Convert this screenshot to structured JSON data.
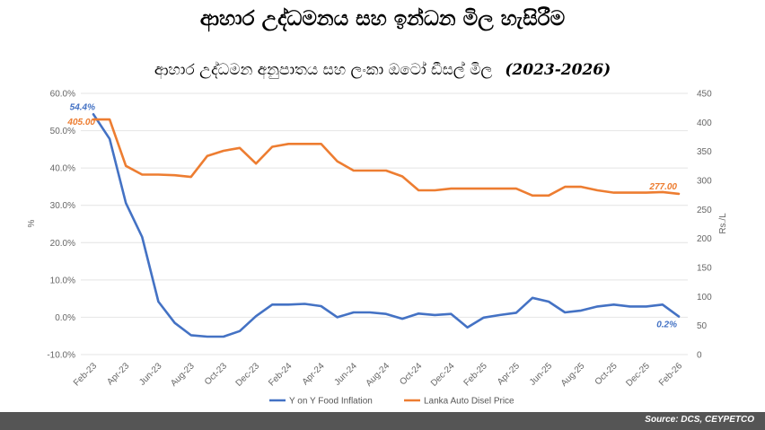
{
  "page": {
    "title": "ආහාර උද්ධමනය සහ ඉන්ධන මිල හැසිරීම",
    "footer_source": "Source: DCS, CEYPETCO"
  },
  "chart_data": {
    "type": "line",
    "title": "ආහාර උද්ධමන අනුපාතය සහ ලංකා ඔටෝ ඩීසල් මිල",
    "title_years": "(2023-2026)",
    "ylabel": "%",
    "y2label": "Rs./L",
    "ylim": [
      -0.1,
      0.6
    ],
    "y2lim": [
      0,
      450
    ],
    "yticks": [
      "60.0%",
      "50.0%",
      "40.0%",
      "30.0%",
      "20.0%",
      "10.0%",
      "0.0%",
      "-10.0%"
    ],
    "y2ticks": [
      "450",
      "400",
      "350",
      "300",
      "250",
      "200",
      "150",
      "100",
      "50",
      "0"
    ],
    "xtick_labels": [
      "Feb-23",
      "Apr-23",
      "Jun-23",
      "Aug-23",
      "Oct-23",
      "Dec-23",
      "Feb-24",
      "Apr-24",
      "Jun-24",
      "Aug-24",
      "Oct-24",
      "Dec-24",
      "Feb-25",
      "Apr-25",
      "Jun-25",
      "Aug-25",
      "Oct-25",
      "Dec-25",
      "Feb-26"
    ],
    "x": [
      "Feb-23",
      "Mar-23",
      "Apr-23",
      "May-23",
      "Jun-23",
      "Jul-23",
      "Aug-23",
      "Sep-23",
      "Oct-23",
      "Nov-23",
      "Dec-23",
      "Jan-24",
      "Feb-24",
      "Mar-24",
      "Apr-24",
      "May-24",
      "Jun-24",
      "Jul-24",
      "Aug-24",
      "Sep-24",
      "Oct-24",
      "Nov-24",
      "Dec-24",
      "Jan-25",
      "Feb-25",
      "Mar-25",
      "Apr-25",
      "May-25",
      "Jun-25",
      "Jul-25",
      "Aug-25",
      "Sep-25",
      "Oct-25",
      "Nov-25",
      "Dec-25",
      "Jan-26",
      "Feb-26"
    ],
    "series": [
      {
        "name": "Y on Y Food Inflation",
        "axis": "left",
        "color": "#4472C4",
        "values": [
          0.544,
          0.478,
          0.306,
          0.215,
          0.042,
          -0.015,
          -0.048,
          -0.052,
          -0.052,
          -0.037,
          0.003,
          0.034,
          0.034,
          0.036,
          0.03,
          0.0,
          0.013,
          0.013,
          0.009,
          -0.004,
          0.01,
          0.006,
          0.009,
          -0.027,
          -0.001,
          0.006,
          0.012,
          0.052,
          0.042,
          0.013,
          0.018,
          0.029,
          0.034,
          0.029,
          0.029,
          0.034,
          0.002
        ]
      },
      {
        "name": "Lanka Auto Disel Price",
        "axis": "right",
        "color": "#ED7D31",
        "values": [
          405,
          405,
          325,
          310,
          310,
          309,
          306,
          342,
          351,
          356,
          329,
          358,
          363,
          363,
          363,
          333,
          317,
          317,
          317,
          307,
          283,
          283,
          286,
          286,
          286,
          286,
          286,
          274,
          274,
          289,
          289,
          283,
          279,
          279,
          279,
          280,
          277
        ]
      }
    ],
    "data_labels": [
      {
        "series": "Y on Y Food Inflation",
        "point": "Feb-23",
        "text": "54.4%"
      },
      {
        "series": "Lanka Auto Disel Price",
        "point": "Feb-23",
        "text": "405.00"
      },
      {
        "series": "Y on Y Food Inflation",
        "point": "Feb-26",
        "text": "0.2%"
      },
      {
        "series": "Lanka Auto Disel Price",
        "point": "Feb-26",
        "text": "277.00"
      }
    ],
    "legend_position": "bottom"
  }
}
